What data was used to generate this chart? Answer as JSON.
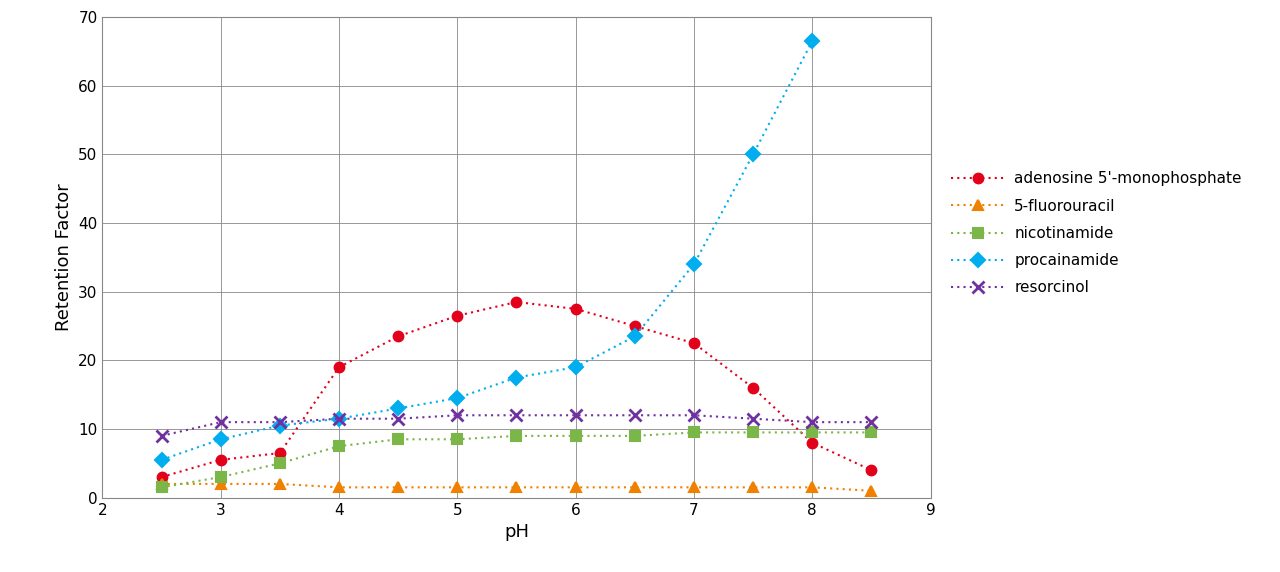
{
  "title": "",
  "xlabel": "pH",
  "ylabel": "Retention Factor",
  "xlim": [
    2,
    9
  ],
  "ylim": [
    0,
    70
  ],
  "xticks": [
    2,
    3,
    4,
    5,
    6,
    7,
    8,
    9
  ],
  "yticks": [
    0,
    10,
    20,
    30,
    40,
    50,
    60,
    70
  ],
  "series": [
    {
      "name": "adenosine 5'-monophosphate",
      "color": "#e2001a",
      "marker": "o",
      "markersize": 7,
      "x": [
        2.5,
        3.0,
        3.5,
        4.0,
        4.5,
        5.0,
        5.5,
        6.0,
        6.5,
        7.0,
        7.5,
        8.0,
        8.5
      ],
      "y": [
        3.0,
        5.5,
        6.5,
        19.0,
        23.5,
        26.5,
        28.5,
        27.5,
        25.0,
        22.5,
        16.0,
        8.0,
        4.0
      ]
    },
    {
      "name": "5-fluorouracil",
      "color": "#f08000",
      "marker": "^",
      "markersize": 7,
      "x": [
        2.5,
        3.0,
        3.5,
        4.0,
        4.5,
        5.0,
        5.5,
        6.0,
        6.5,
        7.0,
        7.5,
        8.0,
        8.5
      ],
      "y": [
        2.0,
        2.0,
        2.0,
        1.5,
        1.5,
        1.5,
        1.5,
        1.5,
        1.5,
        1.5,
        1.5,
        1.5,
        1.0
      ]
    },
    {
      "name": "nicotinamide",
      "color": "#7ab648",
      "marker": "s",
      "markersize": 7,
      "x": [
        2.5,
        3.0,
        3.5,
        4.0,
        4.5,
        5.0,
        5.5,
        6.0,
        6.5,
        7.0,
        7.5,
        8.0,
        8.5
      ],
      "y": [
        1.5,
        3.0,
        5.0,
        7.5,
        8.5,
        8.5,
        9.0,
        9.0,
        9.0,
        9.5,
        9.5,
        9.5,
        9.5
      ]
    },
    {
      "name": "procainamide",
      "color": "#00aeef",
      "marker": "D",
      "markersize": 7,
      "x": [
        2.5,
        3.0,
        3.5,
        4.0,
        4.5,
        5.0,
        5.5,
        6.0,
        6.5,
        7.0,
        7.5,
        8.0
      ],
      "y": [
        5.5,
        8.5,
        10.5,
        11.5,
        13.0,
        14.5,
        17.5,
        19.0,
        23.5,
        34.0,
        50.0,
        66.5
      ]
    },
    {
      "name": "resorcinol",
      "color": "#7030a0",
      "marker": "x",
      "markersize": 9,
      "markeredgewidth": 2.0,
      "x": [
        2.5,
        3.0,
        3.5,
        4.0,
        4.5,
        5.0,
        5.5,
        6.0,
        6.5,
        7.0,
        7.5,
        8.0,
        8.5
      ],
      "y": [
        9.0,
        11.0,
        11.0,
        11.5,
        11.5,
        12.0,
        12.0,
        12.0,
        12.0,
        12.0,
        11.5,
        11.0,
        11.0
      ]
    }
  ],
  "background_color": "#ffffff",
  "grid_color": "#888888",
  "linewidth": 1.5,
  "legend_fontsize": 11,
  "axis_fontsize": 13,
  "tick_fontsize": 11
}
